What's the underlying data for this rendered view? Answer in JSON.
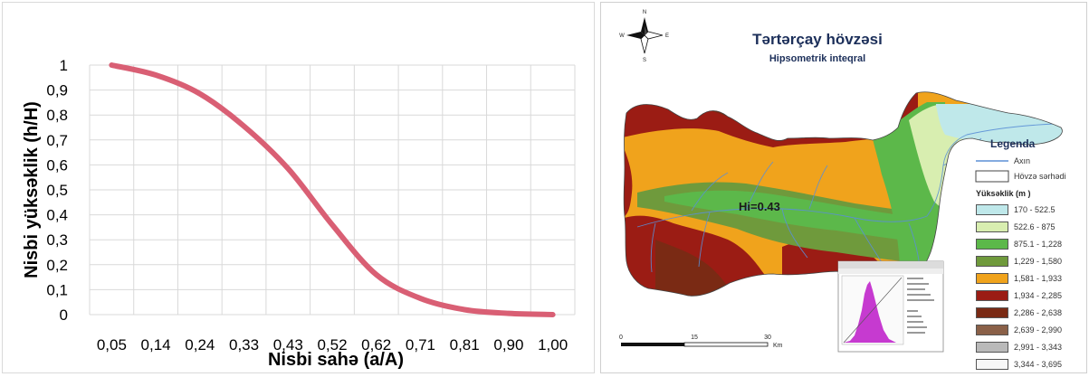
{
  "chart_data": {
    "type": "line",
    "xlabel": "Nisbi sahə (a/A)",
    "ylabel": "Nisbi yüksəklik (h/H)",
    "categories": [
      "0,05",
      "0,14",
      "0,24",
      "0,33",
      "0,43",
      "0,52",
      "0,62",
      "0,71",
      "0,81",
      "0,90",
      "1,00"
    ],
    "y_ticks": [
      "0",
      "0,1",
      "0,2",
      "0,3",
      "0,4",
      "0,5",
      "0,6",
      "0,7",
      "0,8",
      "0,9",
      "1"
    ],
    "ylim": [
      0,
      1
    ],
    "grid": true,
    "series": [
      {
        "values": [
          1.0,
          0.96,
          0.885,
          0.755,
          0.585,
          0.36,
          0.16,
          0.065,
          0.02,
          0.005,
          0.0
        ],
        "color": "#d95f74"
      }
    ]
  },
  "map": {
    "title": "Tərtərçay hövzəsi",
    "subtitle": "Hipsometrik inteqral",
    "hi_label": "Hi=0.43",
    "compass": {
      "n": "N",
      "s": "S",
      "e": "E",
      "w": "W"
    },
    "scale": {
      "ticks": [
        "0",
        "15",
        "30"
      ],
      "unit": "Km"
    },
    "legend": {
      "title": "Legenda",
      "river_label": "Axın",
      "boundary_label": "Hövzə sərhədi",
      "elevation_title": "Yüksəklik (m )",
      "classes": [
        {
          "label": "170 - 522.5",
          "color": "#bfe8ea"
        },
        {
          "label": "522.6 - 875",
          "color": "#d8eeb0"
        },
        {
          "label": "875.1 - 1,228",
          "color": "#5cb84a"
        },
        {
          "label": "1,229 - 1,580",
          "color": "#6f9a3c"
        },
        {
          "label": "1,581 - 1,933",
          "color": "#f0a31c"
        },
        {
          "label": "1,934 - 2,285",
          "color": "#9b1c14"
        },
        {
          "label": "2,286 - 2,638",
          "color": "#7a2a14"
        },
        {
          "label": "2,639 - 2,990",
          "color": "#8a6048"
        },
        {
          "label": "2,991 - 3,343",
          "color": "#b9b9b9"
        },
        {
          "label": "3,344 - 3,695",
          "color": "#f7f7f7"
        }
      ],
      "river_color": "#5b8fd6"
    }
  }
}
